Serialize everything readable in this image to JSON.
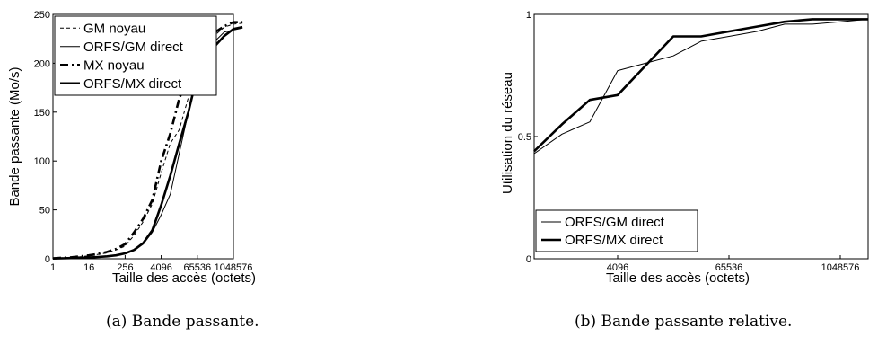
{
  "captions": {
    "a": "(a) Bande passante.",
    "b": "(b) Bande passante relative."
  },
  "chart_data": [
    {
      "type": "line",
      "title": "",
      "xlabel": "Taille des accès (octets)",
      "ylabel": "Bande passante (Mo/s)",
      "x_scale": "log2",
      "xlim": [
        1,
        1048576
      ],
      "ylim": [
        0,
        250
      ],
      "x_ticks": [
        "1",
        "16",
        "256",
        "4096",
        "65536",
        "1048576"
      ],
      "y_ticks": [
        "0",
        "50",
        "100",
        "150",
        "200",
        "250"
      ],
      "x": [
        1,
        2,
        4,
        8,
        16,
        32,
        64,
        128,
        256,
        512,
        1024,
        2048,
        4096,
        8192,
        16384,
        32768,
        65536,
        131072,
        262144,
        524288,
        1048576,
        2097152
      ],
      "legend_position": "top-left",
      "series": [
        {
          "name": "GM noyau",
          "style": "dashed-thin",
          "values": [
            0.5,
            1,
            1.5,
            2,
            3,
            4.5,
            6,
            9,
            13,
            24,
            38,
            56,
            88,
            118,
            132,
            165,
            198,
            216,
            229,
            237,
            240,
            241
          ]
        },
        {
          "name": "ORFS/GM direct",
          "style": "solid-thin",
          "values": [
            0.3,
            0.5,
            0.7,
            1,
            1.3,
            1.8,
            2.5,
            3.5,
            5.5,
            9,
            15,
            27,
            45,
            66,
            108,
            150,
            185,
            208,
            223,
            232,
            234,
            236
          ]
        },
        {
          "name": "MX noyau",
          "style": "dashed-thick",
          "values": [
            0.5,
            1,
            1.5,
            2.5,
            3.5,
            5,
            7,
            10,
            15,
            27,
            41,
            60,
            100,
            128,
            164,
            185,
            203,
            220,
            232,
            238,
            242,
            242
          ]
        },
        {
          "name": "ORFS/MX direct",
          "style": "solid-thick",
          "values": [
            0.3,
            0.5,
            0.7,
            1,
            1.3,
            1.8,
            2.5,
            3.5,
            5.5,
            9,
            16,
            29,
            55,
            85,
            118,
            150,
            188,
            200,
            218,
            228,
            235,
            237
          ]
        }
      ]
    },
    {
      "type": "line",
      "title": "",
      "xlabel": "Taille des accès (octets)",
      "ylabel": "Utilisation du réseau",
      "x_scale": "log2",
      "xlim": [
        512,
        2097152
      ],
      "ylim": [
        0,
        1
      ],
      "x_ticks": [
        "4096",
        "65536",
        "1048576"
      ],
      "y_ticks": [
        "0",
        "0.5",
        "1"
      ],
      "x": [
        512,
        1024,
        2048,
        4096,
        8192,
        16384,
        32768,
        65536,
        131072,
        262144,
        524288,
        1048576,
        2097152
      ],
      "legend_position": "bottom-left",
      "series": [
        {
          "name": "ORFS/GM direct",
          "style": "solid-thin",
          "values": [
            0.43,
            0.51,
            0.56,
            0.77,
            0.8,
            0.83,
            0.89,
            0.91,
            0.93,
            0.96,
            0.96,
            0.97,
            0.98
          ]
        },
        {
          "name": "ORFS/MX direct",
          "style": "solid-thick",
          "values": [
            0.44,
            0.55,
            0.65,
            0.67,
            0.79,
            0.91,
            0.91,
            0.93,
            0.95,
            0.97,
            0.98,
            0.98,
            0.98
          ]
        }
      ]
    }
  ]
}
